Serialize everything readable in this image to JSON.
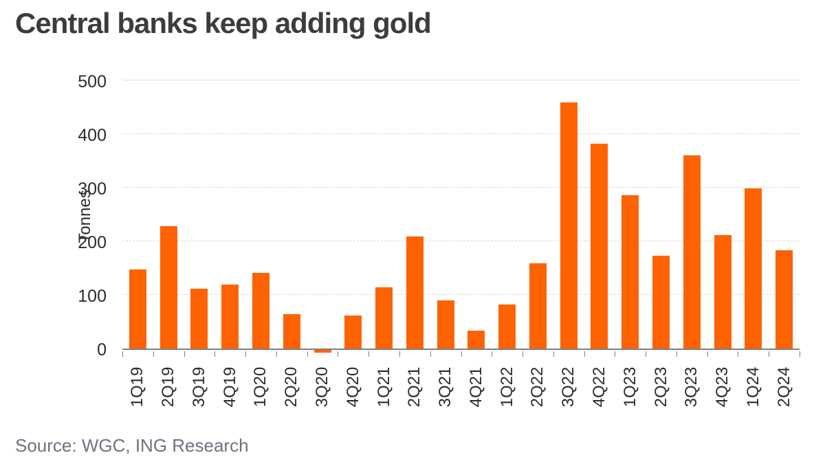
{
  "title": "Central banks keep adding gold",
  "source": "Source: WGC, ING Research",
  "colors": {
    "bar": "#FF6200",
    "title_text": "#3c3c3c",
    "tick_text": "#2b2b2b",
    "axis_line": "#7f7f7f",
    "gridline": "#d8d8d8",
    "source_text": "#6b7480"
  },
  "chart_data": {
    "type": "bar",
    "title": "Central banks keep adding gold",
    "xlabel": "",
    "ylabel": "Tonnes",
    "categories": [
      "1Q19",
      "2Q19",
      "3Q19",
      "4Q19",
      "1Q20",
      "2Q20",
      "3Q20",
      "4Q20",
      "1Q21",
      "2Q21",
      "3Q21",
      "4Q21",
      "1Q22",
      "2Q22",
      "3Q22",
      "4Q22",
      "1Q23",
      "2Q23",
      "3Q23",
      "4Q23",
      "1Q24",
      "2Q24"
    ],
    "values": [
      147,
      228,
      112,
      119,
      141,
      64,
      -5,
      61,
      114,
      209,
      90,
      33,
      82,
      159,
      459,
      382,
      286,
      173,
      360,
      211,
      299,
      183
    ],
    "ylim": [
      0,
      500
    ],
    "yticks": [
      0,
      100,
      200,
      300,
      400,
      500
    ],
    "grid": "horizontal, dashed, at 100-400; solid at 500",
    "legend": "none",
    "bar_color": "#FF6200"
  }
}
